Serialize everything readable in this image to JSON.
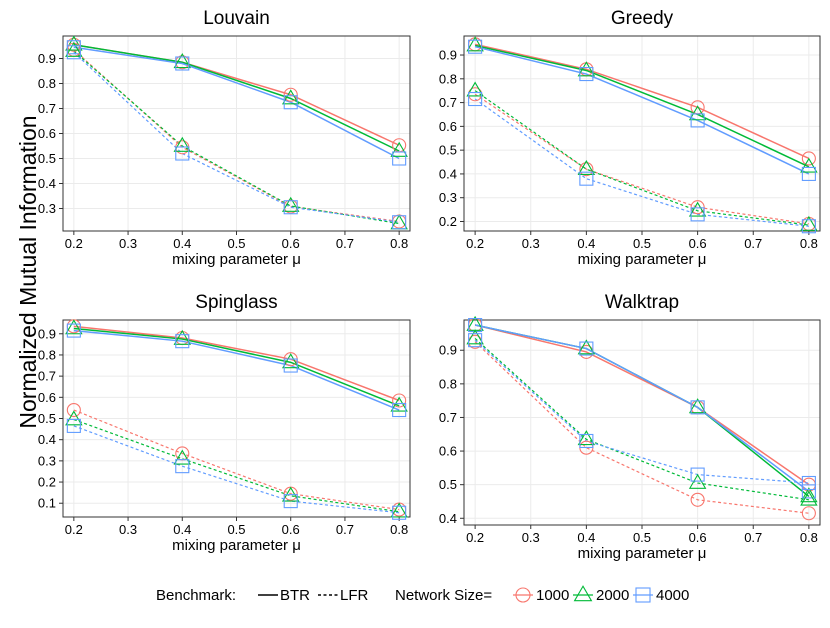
{
  "figure": {
    "ylabel": "Normalized Mutual Information",
    "legend": {
      "benchmark_title": "Benchmark:",
      "benchmark_entries": [
        {
          "label": "BTR",
          "dash": "solid"
        },
        {
          "label": "LFR",
          "dash": "dashed"
        }
      ],
      "size_title": "Network Size=",
      "size_entries": [
        {
          "label": "1000",
          "color": "#F8766D",
          "shape": "circle"
        },
        {
          "label": "2000",
          "color": "#00BA38",
          "shape": "triangle"
        },
        {
          "label": "4000",
          "color": "#619CFF",
          "shape": "square"
        }
      ]
    }
  },
  "chart_data": [
    {
      "type": "line",
      "title": "Louvain",
      "xlabel": "mixing parameter μ",
      "x": [
        0.2,
        0.4,
        0.6,
        0.8
      ],
      "xlim": [
        0.18,
        0.82
      ],
      "ylim": [
        0.21,
        0.99
      ],
      "xticks": [
        0.2,
        0.3,
        0.4,
        0.5,
        0.6,
        0.7,
        0.8
      ],
      "xtick_labels": [
        "0.2",
        "0.3",
        "0.4",
        "0.5",
        "0.6",
        "0.7",
        "0.8"
      ],
      "yticks": [
        0.3,
        0.4,
        0.5,
        0.6,
        0.7,
        0.8,
        0.9
      ],
      "ytick_labels": [
        "0.3",
        "0.4",
        "0.5",
        "0.6",
        "0.7",
        "0.8",
        "0.9"
      ],
      "series": [
        {
          "name": "BTR 1000",
          "benchmark": "BTR",
          "size": "1000",
          "values": [
            0.955,
            0.885,
            0.755,
            0.553
          ]
        },
        {
          "name": "BTR 2000",
          "benchmark": "BTR",
          "size": "2000",
          "values": [
            0.955,
            0.885,
            0.74,
            0.53
          ]
        },
        {
          "name": "BTR 4000",
          "benchmark": "BTR",
          "size": "4000",
          "values": [
            0.945,
            0.88,
            0.725,
            0.5
          ]
        },
        {
          "name": "LFR 1000",
          "benchmark": "LFR",
          "size": "1000",
          "values": [
            0.935,
            0.545,
            0.308,
            0.248
          ]
        },
        {
          "name": "LFR 2000",
          "benchmark": "LFR",
          "size": "2000",
          "values": [
            0.93,
            0.55,
            0.31,
            0.24
          ]
        },
        {
          "name": "LFR 4000",
          "benchmark": "LFR",
          "size": "4000",
          "values": [
            0.925,
            0.52,
            0.305,
            0.245
          ]
        }
      ]
    },
    {
      "type": "line",
      "title": "Greedy",
      "xlabel": "mixing parameter μ",
      "x": [
        0.2,
        0.4,
        0.6,
        0.8
      ],
      "xlim": [
        0.18,
        0.82
      ],
      "ylim": [
        0.16,
        0.98
      ],
      "xticks": [
        0.2,
        0.3,
        0.4,
        0.5,
        0.6,
        0.7,
        0.8
      ],
      "xtick_labels": [
        "0.2",
        "0.3",
        "0.4",
        "0.5",
        "0.6",
        "0.7",
        "0.8"
      ],
      "yticks": [
        0.2,
        0.3,
        0.4,
        0.5,
        0.6,
        0.7,
        0.8,
        0.9
      ],
      "ytick_labels": [
        "0.2",
        "0.3",
        "0.4",
        "0.5",
        "0.6",
        "0.7",
        "0.8",
        "0.9"
      ],
      "series": [
        {
          "name": "BTR 1000",
          "benchmark": "BTR",
          "size": "1000",
          "values": [
            0.945,
            0.84,
            0.68,
            0.465
          ]
        },
        {
          "name": "BTR 2000",
          "benchmark": "BTR",
          "size": "2000",
          "values": [
            0.94,
            0.835,
            0.65,
            0.43
          ]
        },
        {
          "name": "BTR 4000",
          "benchmark": "BTR",
          "size": "4000",
          "values": [
            0.935,
            0.82,
            0.625,
            0.4
          ]
        },
        {
          "name": "LFR 1000",
          "benchmark": "LFR",
          "size": "1000",
          "values": [
            0.735,
            0.42,
            0.26,
            0.19
          ]
        },
        {
          "name": "LFR 2000",
          "benchmark": "LFR",
          "size": "2000",
          "values": [
            0.75,
            0.42,
            0.245,
            0.185
          ]
        },
        {
          "name": "LFR 4000",
          "benchmark": "LFR",
          "size": "4000",
          "values": [
            0.715,
            0.38,
            0.23,
            0.18
          ]
        }
      ]
    },
    {
      "type": "line",
      "title": "Spinglass",
      "xlabel": "mixing parameter μ",
      "x": [
        0.2,
        0.4,
        0.6,
        0.8
      ],
      "xlim": [
        0.18,
        0.82
      ],
      "ylim": [
        0.035,
        0.965
      ],
      "xticks": [
        0.2,
        0.3,
        0.4,
        0.5,
        0.6,
        0.7,
        0.8
      ],
      "xtick_labels": [
        "0.2",
        "0.3",
        "0.4",
        "0.5",
        "0.6",
        "0.7",
        "0.8"
      ],
      "yticks": [
        0.1,
        0.2,
        0.3,
        0.4,
        0.5,
        0.6,
        0.7,
        0.8,
        0.9
      ],
      "ytick_labels": [
        "0.1",
        "0.2",
        "0.3",
        "0.4",
        "0.5",
        "0.6",
        "0.7",
        "0.8",
        "0.9"
      ],
      "series": [
        {
          "name": "BTR 1000",
          "benchmark": "BTR",
          "size": "1000",
          "values": [
            0.935,
            0.88,
            0.78,
            0.585
          ]
        },
        {
          "name": "BTR 2000",
          "benchmark": "BTR",
          "size": "2000",
          "values": [
            0.925,
            0.875,
            0.765,
            0.56
          ]
        },
        {
          "name": "BTR 4000",
          "benchmark": "BTR",
          "size": "4000",
          "values": [
            0.915,
            0.865,
            0.75,
            0.54
          ]
        },
        {
          "name": "LFR 1000",
          "benchmark": "LFR",
          "size": "1000",
          "values": [
            0.54,
            0.335,
            0.145,
            0.07
          ]
        },
        {
          "name": "LFR 2000",
          "benchmark": "LFR",
          "size": "2000",
          "values": [
            0.495,
            0.31,
            0.135,
            0.06
          ]
        },
        {
          "name": "LFR 4000",
          "benchmark": "LFR",
          "size": "4000",
          "values": [
            0.465,
            0.275,
            0.11,
            0.055
          ]
        }
      ]
    },
    {
      "type": "line",
      "title": "Walktrap",
      "xlabel": "mixing parameter μ",
      "x": [
        0.2,
        0.4,
        0.6,
        0.8
      ],
      "xlim": [
        0.18,
        0.82
      ],
      "ylim": [
        0.38,
        0.99
      ],
      "xticks": [
        0.2,
        0.3,
        0.4,
        0.5,
        0.6,
        0.7,
        0.8
      ],
      "xtick_labels": [
        "0.2",
        "0.3",
        "0.4",
        "0.5",
        "0.6",
        "0.7",
        "0.8"
      ],
      "yticks": [
        0.4,
        0.5,
        0.6,
        0.7,
        0.8,
        0.9
      ],
      "ytick_labels": [
        "0.4",
        "0.5",
        "0.6",
        "0.7",
        "0.8",
        "0.9"
      ],
      "series": [
        {
          "name": "BTR 1000",
          "benchmark": "BTR",
          "size": "1000",
          "values": [
            0.975,
            0.895,
            0.73,
            0.5
          ]
        },
        {
          "name": "BTR 2000",
          "benchmark": "BTR",
          "size": "2000",
          "values": [
            0.975,
            0.905,
            0.73,
            0.465
          ]
        },
        {
          "name": "BTR 4000",
          "benchmark": "BTR",
          "size": "4000",
          "values": [
            0.975,
            0.905,
            0.73,
            0.48
          ]
        },
        {
          "name": "LFR 1000",
          "benchmark": "LFR",
          "size": "1000",
          "values": [
            0.925,
            0.61,
            0.455,
            0.415
          ]
        },
        {
          "name": "LFR 2000",
          "benchmark": "LFR",
          "size": "2000",
          "values": [
            0.935,
            0.635,
            0.505,
            0.455
          ]
        },
        {
          "name": "LFR 4000",
          "benchmark": "LFR",
          "size": "4000",
          "values": [
            0.93,
            0.63,
            0.53,
            0.505
          ]
        }
      ]
    }
  ]
}
